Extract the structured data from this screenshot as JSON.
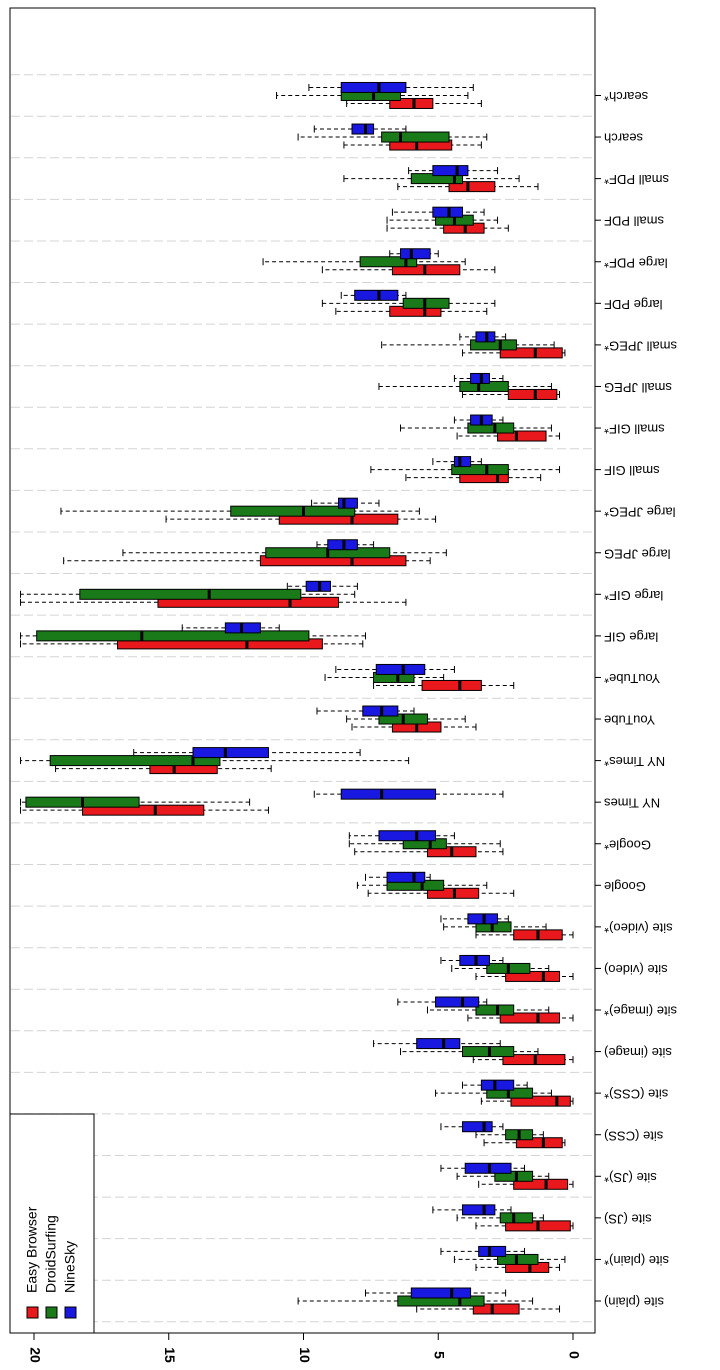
{
  "chart_data": {
    "type": "boxplot",
    "orientation": "horizontal-value-axis-rotated",
    "value_axis": {
      "ticks": [
        0,
        5,
        10,
        15,
        20
      ],
      "tick_labels": [
        "0",
        "5",
        "10",
        "15",
        "20"
      ],
      "range": [
        0,
        20.5
      ]
    },
    "categories": [
      "site (plain)",
      "site (plain)*",
      "site (JS)",
      "site (JS)*",
      "site (CSS)",
      "site (CSS)*",
      "site (image)",
      "site (image)*",
      "site (video)",
      "site (video)*",
      "Google",
      "Google*",
      "NY Times",
      "NY Times*",
      "YouTube",
      "YouTube*",
      "large GIF",
      "large GIF*",
      "large JPEG",
      "large JPEG*",
      "small GIF",
      "small GIF*",
      "small JPEG",
      "small JPEG*",
      "large PDF",
      "large PDF*",
      "small PDF",
      "small PDF*",
      "search",
      "search*"
    ],
    "legend": {
      "placement": "bottom-left",
      "entries": [
        "Easy Browser",
        "DroidSurfing",
        "NineSky"
      ]
    },
    "colors": {
      "Easy Browser": "#e8181c",
      "DroidSurfing": "#1a7a1a",
      "NineSky": "#1818e0"
    },
    "grid": true,
    "series": [
      {
        "name": "Easy Browser",
        "boxes": [
          [
            0.5,
            2,
            3,
            3.7,
            5.8
          ],
          [
            0.5,
            0.9,
            1.6,
            2.5,
            3.6
          ],
          [
            0,
            0.1,
            1.3,
            2.5,
            3.6
          ],
          [
            0,
            0.2,
            1,
            2.2,
            3.5
          ],
          [
            0.3,
            0.4,
            1.1,
            2.1,
            3.3
          ],
          [
            0,
            0.1,
            0.6,
            2.3,
            3.4
          ],
          [
            0,
            0.3,
            1.4,
            2.6,
            3.7
          ],
          [
            0,
            0.5,
            1.3,
            2.7,
            3.9
          ],
          [
            0,
            0.5,
            1.1,
            2.5,
            3.6
          ],
          [
            0,
            0.4,
            1.3,
            2.2,
            3.6
          ],
          [
            2.2,
            3.5,
            4.4,
            5.4,
            7.6
          ],
          [
            2.6,
            3.6,
            4.5,
            5.4,
            8.1
          ],
          [
            11.3,
            13.7,
            15.5,
            18.2,
            20.5
          ],
          [
            11.2,
            13.2,
            14.8,
            15.7,
            19.2
          ],
          [
            3.6,
            4.9,
            5.8,
            6.7,
            8.2
          ],
          [
            2.2,
            3.4,
            4.2,
            5.6,
            7.4
          ],
          [
            7.8,
            9.3,
            12.1,
            16.9,
            20.5
          ],
          [
            6.2,
            8.7,
            10.5,
            15.4,
            20.5
          ],
          [
            5.3,
            6.2,
            8.2,
            11.6,
            18.9
          ],
          [
            5.1,
            6.5,
            8.2,
            10.9,
            15.1
          ],
          [
            1.2,
            2.4,
            2.8,
            4.2,
            6.2
          ],
          [
            0.5,
            1,
            2.1,
            2.8,
            4.3
          ],
          [
            0.5,
            0.6,
            1.4,
            2.4,
            4.1
          ],
          [
            0.3,
            0.4,
            1.4,
            2.7,
            4.1
          ],
          [
            3.2,
            4.9,
            5.5,
            6.8,
            8.8
          ],
          [
            2.9,
            4.2,
            5.5,
            6.7,
            9.3
          ],
          [
            2.4,
            3.3,
            4,
            4.8,
            6.9
          ],
          [
            1.3,
            2.9,
            3.9,
            4.6,
            6.5
          ],
          [
            3.4,
            4.5,
            5.8,
            6.8,
            8.5
          ],
          [
            3.4,
            5.2,
            5.9,
            6.8,
            8.4
          ]
        ]
      },
      {
        "name": "DroidSurfing",
        "boxes": [
          [
            1.5,
            3.3,
            4.2,
            6.5,
            10.2
          ],
          [
            0.3,
            1.3,
            2.1,
            2.8,
            4.4
          ],
          [
            1.1,
            1.5,
            2.2,
            2.7,
            4.3
          ],
          [
            0.9,
            1.5,
            2.1,
            2.9,
            4.3
          ],
          [
            1.1,
            1.5,
            2,
            2.5,
            3.6
          ],
          [
            0.8,
            1.5,
            2.4,
            3.2,
            5.1
          ],
          [
            1.3,
            2.2,
            3.1,
            4.1,
            6.4
          ],
          [
            0.9,
            2.2,
            2.8,
            3.6,
            5.4
          ],
          [
            0.9,
            1.6,
            2.4,
            3.2,
            4.5
          ],
          [
            1,
            2.3,
            3,
            3.6,
            4.8
          ],
          [
            3.2,
            4.8,
            5.6,
            6.9,
            8
          ],
          [
            2.7,
            4.7,
            5.3,
            6.3,
            8.3
          ],
          [
            12,
            16.1,
            18.2,
            20.3,
            20.5
          ],
          [
            6.1,
            13.1,
            14.1,
            19.4,
            20.5
          ],
          [
            4,
            5.4,
            6.3,
            7.2,
            8.4
          ],
          [
            4.8,
            5.9,
            6.5,
            7.4,
            9.2
          ],
          [
            7.7,
            9.8,
            16,
            19.9,
            20.5
          ],
          [
            8.1,
            10.1,
            13.5,
            18.3,
            20.5
          ],
          [
            4.7,
            6.8,
            9.1,
            11.4,
            16.7
          ],
          [
            5.7,
            8.1,
            10,
            12.7,
            19
          ],
          [
            0.5,
            2.4,
            3.2,
            4.5,
            7.5
          ],
          [
            0.8,
            2.2,
            2.9,
            3.9,
            6.4
          ],
          [
            0.8,
            2.4,
            3.5,
            4.2,
            7.2
          ],
          [
            0.7,
            2.1,
            2.7,
            3.8,
            7.1
          ],
          [
            2.9,
            4.6,
            5.5,
            6.3,
            9.3
          ],
          [
            4,
            5.8,
            6.2,
            7.9,
            11.5
          ],
          [
            2.8,
            3.7,
            4.4,
            5.1,
            6.9
          ],
          [
            2,
            4.1,
            4.4,
            6,
            8.5
          ],
          [
            3.2,
            4.6,
            6.4,
            7.1,
            10.2
          ],
          [
            3.9,
            6.4,
            7.4,
            8.6,
            11
          ]
        ]
      },
      {
        "name": "NineSky",
        "boxes": [
          [
            2.5,
            3.8,
            4.5,
            6,
            7.7
          ],
          [
            1.8,
            2.5,
            3.1,
            3.5,
            4.9
          ],
          [
            2.3,
            2.9,
            3.3,
            4.1,
            5.2
          ],
          [
            1.8,
            2.3,
            3.1,
            4,
            4.9
          ],
          [
            2.6,
            3,
            3.3,
            4.1,
            4.9
          ],
          [
            1.7,
            2.2,
            2.9,
            3.4,
            4.1
          ],
          [
            2.7,
            4.2,
            4.8,
            5.8,
            7.4
          ],
          [
            3.2,
            3.5,
            4.1,
            5.1,
            6.5
          ],
          [
            2.6,
            3.1,
            3.6,
            4.2,
            4.9
          ],
          [
            2.4,
            2.8,
            3.3,
            3.9,
            4.9
          ],
          [
            5.3,
            5.5,
            5.9,
            6.9,
            7.7
          ],
          [
            4.4,
            5.1,
            5.8,
            7.2,
            8.3
          ],
          [
            2.6,
            5.1,
            7.1,
            8.6,
            9.6
          ],
          [
            7.9,
            11.3,
            12.9,
            14.1,
            16.3
          ],
          [
            5.9,
            6.5,
            7.1,
            7.8,
            9.5
          ],
          [
            4.4,
            5.5,
            6.3,
            7.3,
            8.8
          ],
          [
            10.9,
            11.6,
            12.3,
            12.9,
            14.5
          ],
          [
            8,
            9,
            9.4,
            9.9,
            10.6
          ],
          [
            7.4,
            8,
            8.5,
            9.1,
            9.5
          ],
          [
            7.2,
            8,
            8.5,
            8.7,
            9.7
          ],
          [
            3.4,
            3.8,
            4.2,
            4.4,
            5.2
          ],
          [
            2.6,
            3,
            3.4,
            3.8,
            4.4
          ],
          [
            2.6,
            3.1,
            3.4,
            3.8,
            4.4
          ],
          [
            2.5,
            2.9,
            3.2,
            3.6,
            4.2
          ],
          [
            6.2,
            6.5,
            7.2,
            8.1,
            8.6
          ],
          [
            5,
            5.3,
            6,
            6.4,
            6.8
          ],
          [
            3.3,
            4.1,
            4.6,
            5.2,
            6.7
          ],
          [
            2.8,
            3.9,
            4.3,
            5.2,
            6.1
          ],
          [
            6.2,
            7.4,
            7.7,
            8.2,
            9.6
          ],
          [
            3.7,
            6.2,
            7.2,
            8.6,
            9.8
          ]
        ]
      }
    ]
  }
}
